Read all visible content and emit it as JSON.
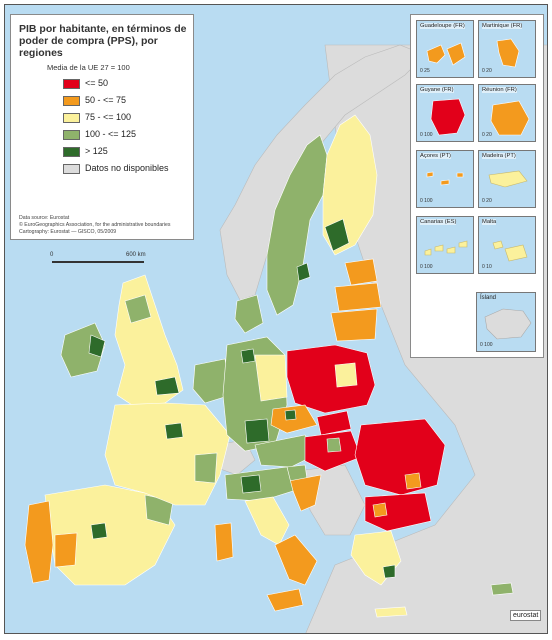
{
  "legend": {
    "title": "PIB por habitante, en términos de poder de compra (PPS), por regiones",
    "subtitle": "Media de la UE 27 = 100",
    "items": [
      {
        "label": "<= 50",
        "color": "#e2001a"
      },
      {
        "label": "50 - <= 75",
        "color": "#f39a1e"
      },
      {
        "label": "75 - <= 100",
        "color": "#fbf19c"
      },
      {
        "label": "100 - <= 125",
        "color": "#8fb26b"
      },
      {
        "label": "> 125",
        "color": "#2e6b2a"
      },
      {
        "label": "Datos no disponibles",
        "color": "#dcdcdc"
      }
    ],
    "source_lines": [
      "Data source: Eurostat",
      "© EuroGeographics Association, for the administrative boundaries",
      "Cartography: Eurostat — GISCO, 05/2009"
    ]
  },
  "scale": {
    "start": "0",
    "end": "600 km"
  },
  "insets": [
    {
      "label": "Guadeloupe (FR)",
      "scale": "0    25",
      "fill": "#f39a1e"
    },
    {
      "label": "Martinique (FR)",
      "scale": "0    20",
      "fill": "#f39a1e"
    },
    {
      "label": "Guyane (FR)",
      "scale": "0    100",
      "fill": "#e2001a"
    },
    {
      "label": "Réunion (FR)",
      "scale": "0    20",
      "fill": "#f39a1e"
    },
    {
      "label": "Açores (PT)",
      "scale": "0    100",
      "fill": "#f39a1e"
    },
    {
      "label": "Madeira (PT)",
      "scale": "0    20",
      "fill": "#fbf19c"
    },
    {
      "label": "Canarias (ES)",
      "scale": "0    100",
      "fill": "#fbf19c"
    },
    {
      "label": "Malta",
      "scale": "0    10",
      "fill": "#fbf19c"
    }
  ],
  "island": {
    "label": "Ísland",
    "scale": "0    100",
    "fill": "#dcdcdc"
  },
  "logo": "eurostat",
  "colors": {
    "sea": "#b9dcf2",
    "non_eu_land": "#dcdcdc",
    "border": "#ffffff"
  }
}
